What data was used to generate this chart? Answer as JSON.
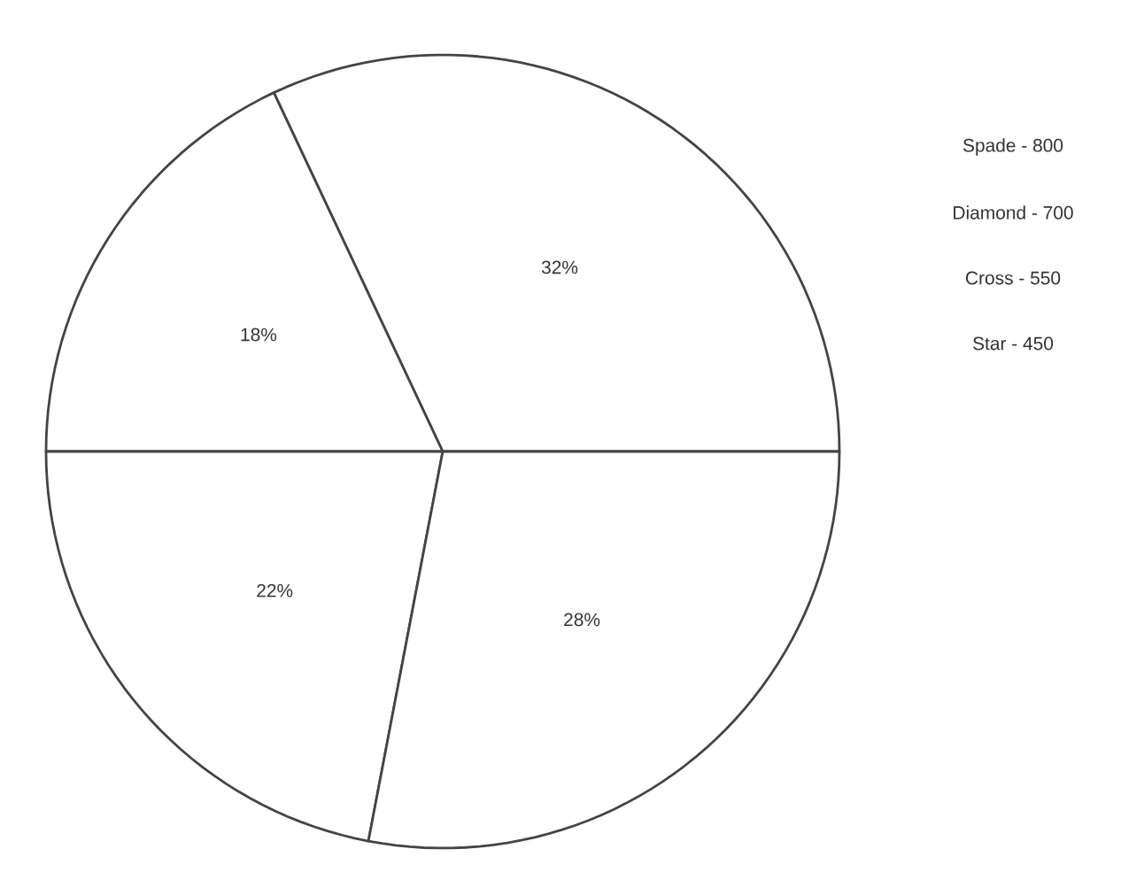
{
  "chart_data": {
    "type": "pie",
    "categories": [
      null,
      null,
      null,
      null
    ],
    "values": [
      32,
      18,
      22,
      28
    ],
    "colors": [
      "#ffffff",
      "#ffffff",
      "#ffffff",
      "#ffffff"
    ],
    "value_labels": [
      "32%",
      "18%",
      "22%",
      "28%"
    ],
    "annotations": [
      "Spade - 800",
      "Diamond - 700",
      "Cross - 550",
      "Star - 450"
    ]
  }
}
